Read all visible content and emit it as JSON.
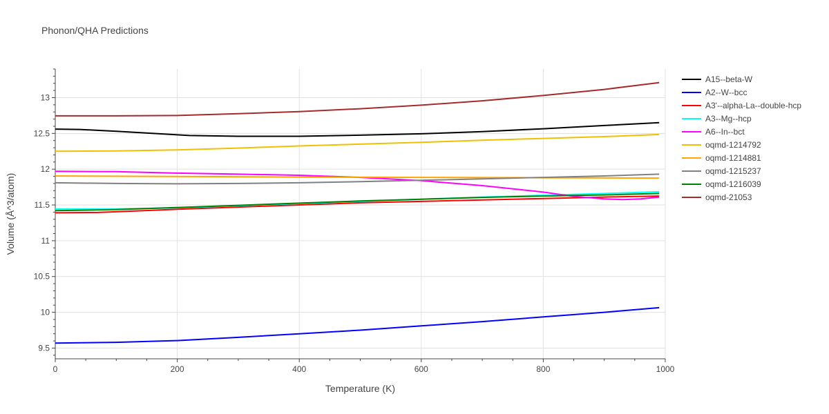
{
  "chart_data": {
    "type": "line",
    "title": "Phonon/QHA Predictions",
    "xlabel": "Temperature (K)",
    "ylabel": "Volume (Å^3/atom)",
    "xlim": [
      0,
      1000
    ],
    "ylim": [
      9.35,
      13.4
    ],
    "xticks": [
      0,
      200,
      400,
      600,
      800,
      1000
    ],
    "yticks": [
      9.5,
      10,
      10.5,
      11,
      11.5,
      12,
      12.5,
      13
    ],
    "xtick_labels": [
      "0",
      "200",
      "400",
      "600",
      "800",
      "1000"
    ],
    "ytick_labels": [
      "9.5",
      "10",
      "10.5",
      "11",
      "11.5",
      "12",
      "12.5",
      "13"
    ],
    "grid": true,
    "legend_position": "top-right",
    "series": [
      {
        "name": "A15--beta-W",
        "color": "#000000",
        "x": [
          0,
          40,
          100,
          200,
          220,
          300,
          400,
          500,
          600,
          700,
          800,
          900,
          990
        ],
        "y": [
          12.56,
          12.555,
          12.53,
          12.48,
          12.47,
          12.46,
          12.46,
          12.475,
          12.495,
          12.525,
          12.565,
          12.61,
          12.65
        ]
      },
      {
        "name": "A2--W--bcc",
        "color": "#0000ff",
        "x": [
          0,
          100,
          200,
          300,
          400,
          500,
          600,
          700,
          800,
          900,
          990
        ],
        "y": [
          9.57,
          9.58,
          9.605,
          9.65,
          9.7,
          9.75,
          9.81,
          9.87,
          9.935,
          10.0,
          10.065
        ]
      },
      {
        "name": "A3'--alpha-La--double-hcp",
        "color": "#ff0000",
        "x": [
          0,
          70,
          100,
          200,
          300,
          400,
          500,
          600,
          700,
          800,
          900,
          990
        ],
        "y": [
          11.39,
          11.395,
          11.405,
          11.44,
          11.47,
          11.5,
          11.53,
          11.55,
          11.57,
          11.59,
          11.61,
          11.625
        ]
      },
      {
        "name": "A3--Mg--hcp",
        "color": "#00ffff",
        "x": [
          0,
          100,
          200,
          300,
          400,
          500,
          600,
          700,
          800,
          900,
          990
        ],
        "y": [
          11.445,
          11.445,
          11.46,
          11.49,
          11.52,
          11.55,
          11.58,
          11.61,
          11.635,
          11.66,
          11.685
        ]
      },
      {
        "name": "A6--In--bct",
        "color": "#ff00ff",
        "x": [
          0,
          100,
          200,
          300,
          400,
          500,
          600,
          700,
          800,
          850,
          900,
          930,
          960,
          990
        ],
        "y": [
          11.97,
          11.965,
          11.945,
          11.93,
          11.915,
          11.885,
          11.84,
          11.77,
          11.68,
          11.62,
          11.585,
          11.575,
          11.585,
          11.61
        ]
      },
      {
        "name": "oqmd-1214792",
        "color": "#f0c000",
        "x": [
          0,
          100,
          200,
          300,
          400,
          500,
          600,
          700,
          800,
          900,
          990
        ],
        "y": [
          12.25,
          12.255,
          12.27,
          12.295,
          12.325,
          12.35,
          12.375,
          12.405,
          12.43,
          12.455,
          12.485
        ]
      },
      {
        "name": "oqmd-1214881",
        "color": "#ffa500",
        "x": [
          0,
          200,
          400,
          600,
          800,
          990
        ],
        "y": [
          11.905,
          11.898,
          11.89,
          11.885,
          11.88,
          11.875
        ]
      },
      {
        "name": "oqmd-1215237",
        "color": "#808080",
        "x": [
          0,
          100,
          200,
          300,
          400,
          500,
          600,
          700,
          800,
          900,
          990
        ],
        "y": [
          11.81,
          11.8,
          11.795,
          11.8,
          11.81,
          11.825,
          11.845,
          11.865,
          11.885,
          11.905,
          11.93
        ]
      },
      {
        "name": "oqmd-1216039",
        "color": "#008000",
        "x": [
          0,
          100,
          200,
          300,
          400,
          500,
          600,
          700,
          800,
          900,
          990
        ],
        "y": [
          11.42,
          11.435,
          11.465,
          11.495,
          11.525,
          11.555,
          11.58,
          11.605,
          11.625,
          11.64,
          11.66
        ]
      },
      {
        "name": "oqmd-21053",
        "color": "#a52a2a",
        "x": [
          0,
          100,
          200,
          300,
          400,
          500,
          600,
          700,
          800,
          900,
          990
        ],
        "y": [
          12.745,
          12.745,
          12.75,
          12.775,
          12.805,
          12.845,
          12.895,
          12.955,
          13.03,
          13.115,
          13.21
        ]
      }
    ]
  }
}
